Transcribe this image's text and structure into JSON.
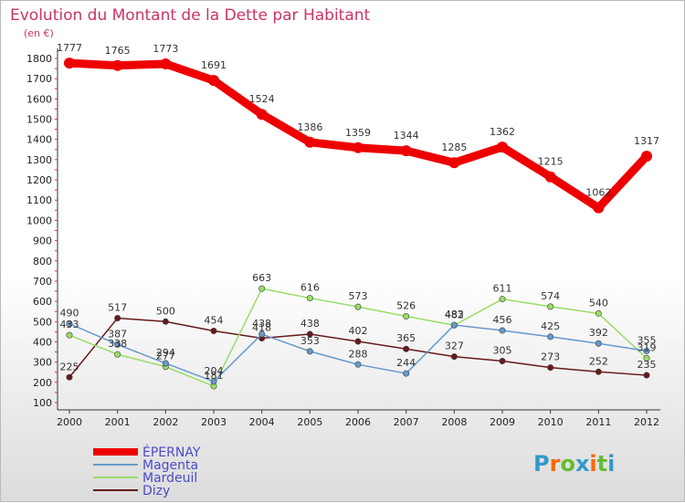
{
  "chart_data": {
    "type": "line",
    "title": "Evolution du Montant de la Dette par Habitant",
    "subtitle": "(en €)",
    "x": [
      "2000",
      "2001",
      "2002",
      "2003",
      "2004",
      "2005",
      "2006",
      "2007",
      "2008",
      "2009",
      "2010",
      "2011",
      "2012"
    ],
    "ylim": [
      100,
      1800
    ],
    "yticks": [
      100,
      200,
      300,
      400,
      500,
      600,
      700,
      800,
      900,
      1000,
      1100,
      1200,
      1300,
      1400,
      1500,
      1600,
      1700,
      1800
    ],
    "grid": false,
    "legend_position": "bottom-left",
    "series": [
      {
        "name": "ÉPERNAY",
        "color": "#ee0000",
        "values": [
          1777,
          1765,
          1773,
          1691,
          1524,
          1386,
          1359,
          1344,
          1285,
          1362,
          1215,
          1062,
          1317
        ]
      },
      {
        "name": "Magenta",
        "color": "#6699cc",
        "values": [
          490,
          387,
          294,
          204,
          438,
          353,
          288,
          244,
          483,
          456,
          425,
          392,
          355
        ]
      },
      {
        "name": "Mardeuil",
        "color": "#99dd66",
        "values": [
          433,
          338,
          277,
          181,
          663,
          616,
          573,
          526,
          482,
          611,
          574,
          540,
          319
        ]
      },
      {
        "name": "Dizy",
        "color": "#661a1a",
        "values": [
          225,
          517,
          500,
          454,
          418,
          438,
          402,
          365,
          327,
          305,
          273,
          252,
          235
        ]
      }
    ]
  },
  "logo": {
    "letters": [
      "P",
      "r",
      "o",
      "x",
      "i",
      "t",
      "i"
    ],
    "colors": [
      "#3399cc",
      "#ff6600",
      "#66bb33",
      "#3399cc",
      "#ff6600",
      "#66bb33",
      "#3399cc"
    ]
  }
}
